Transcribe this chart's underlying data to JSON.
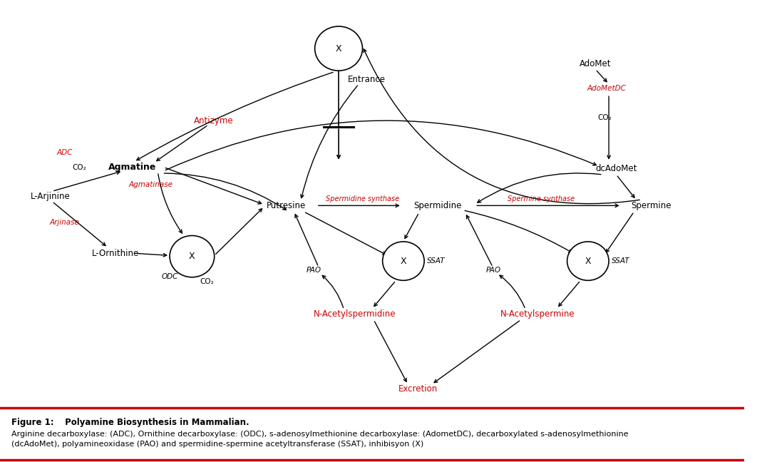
{
  "fig_width": 10.83,
  "fig_height": 6.48,
  "bg_color": "#ffffff",
  "red_color": "#cc0000",
  "black_color": "#000000",
  "label_fontsize": 8.5,
  "small_fontsize": 7.5,
  "caption_bold": "Figure 1:",
  "caption_italic": " Polyamine Biosynthesis in Mammalian.",
  "caption_body": "Arginine decarboxylase: (ADC), Ornithine decarboxylase: (ODC), s-adenosylmethionine decarboxylase: (AdometDC), decarboxylated s-adenosylmethionine\n(dcAdoMet), polyamineoxidase (PAO) and spermidine-spermine acetyltransferase (SSAT), inhibisyon (X)"
}
